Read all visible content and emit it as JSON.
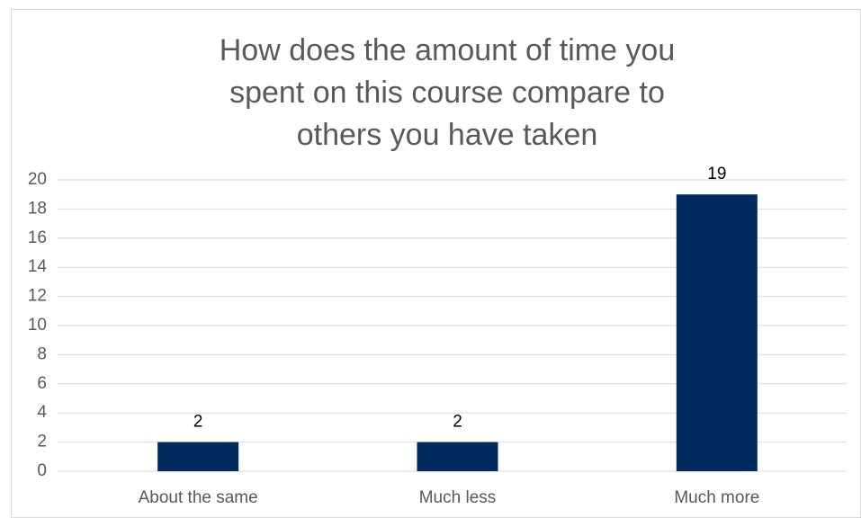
{
  "chart_data": {
    "type": "bar",
    "title": "How does the amount of time you spent on this course compare to others you have taken",
    "categories": [
      "About the same",
      "Much less",
      "Much more"
    ],
    "values": [
      2,
      2,
      19
    ],
    "color": "#002b5c",
    "ylim": [
      0,
      20
    ],
    "yticks": [
      0,
      2,
      4,
      6,
      8,
      10,
      12,
      14,
      16,
      18,
      20
    ],
    "grid": true
  }
}
